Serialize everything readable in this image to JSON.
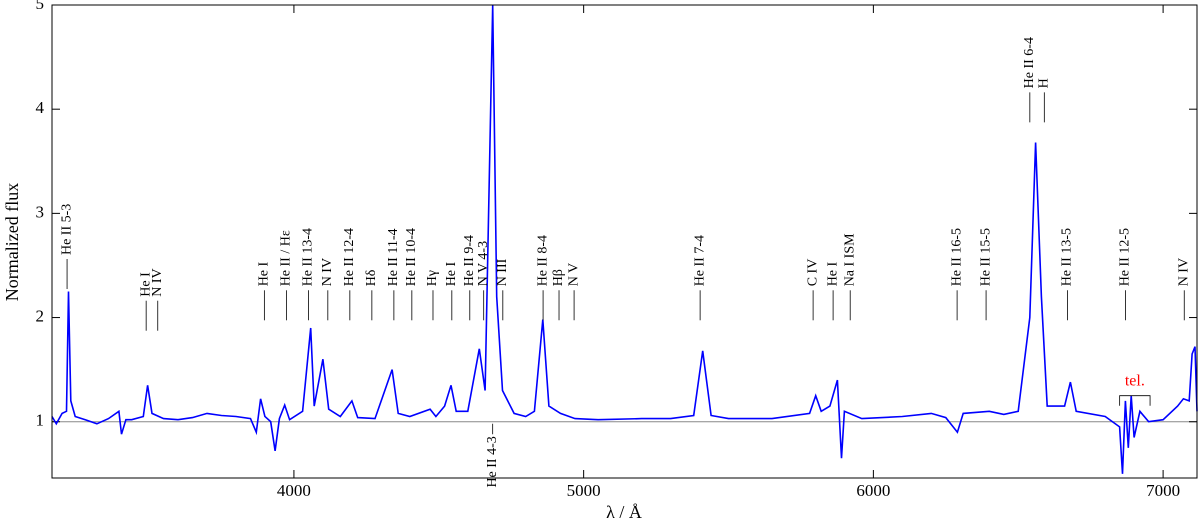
{
  "chart_data": {
    "type": "line",
    "xlabel": "λ / Å",
    "ylabel": "Normalized flux",
    "xlim": [
      3165,
      7117
    ],
    "ylim": [
      0.46,
      5.0
    ],
    "xticks": [
      4000,
      5000,
      6000,
      7000
    ],
    "yticks": [
      1,
      2,
      3,
      4,
      5
    ],
    "hline": 1,
    "hline_color": "#888888",
    "x": [
      3165,
      3180,
      3200,
      3215,
      3222,
      3230,
      3245,
      3280,
      3320,
      3360,
      3396,
      3405,
      3420,
      3440,
      3480,
      3495,
      3510,
      3550,
      3600,
      3650,
      3700,
      3750,
      3800,
      3850,
      3870,
      3885,
      3900,
      3920,
      3935,
      3950,
      3968,
      3985,
      4030,
      4058,
      4070,
      4100,
      4120,
      4160,
      4200,
      4220,
      4280,
      4339,
      4360,
      4400,
      4470,
      4490,
      4520,
      4542,
      4560,
      4600,
      4640,
      4660,
      4686,
      4700,
      4720,
      4760,
      4800,
      4830,
      4859,
      4880,
      4920,
      4970,
      5050,
      5200,
      5300,
      5380,
      5411,
      5440,
      5500,
      5650,
      5780,
      5801,
      5820,
      5850,
      5876,
      5890,
      5900,
      5960,
      6100,
      6200,
      6250,
      6290,
      6310,
      6400,
      6450,
      6500,
      6540,
      6560,
      6580,
      6600,
      6660,
      6680,
      6700,
      6800,
      6850,
      6860,
      6870,
      6880,
      6890,
      6900,
      6920,
      6950,
      7000,
      7050,
      7070,
      7090,
      7100,
      7110,
      7117
    ],
    "series": [
      {
        "name": "spectrum",
        "color": "#0000ff",
        "values": [
          1.05,
          0.98,
          1.08,
          1.1,
          2.25,
          1.2,
          1.05,
          1.02,
          0.98,
          1.03,
          1.1,
          0.88,
          1.02,
          1.02,
          1.05,
          1.35,
          1.08,
          1.03,
          1.02,
          1.04,
          1.08,
          1.06,
          1.05,
          1.03,
          0.9,
          1.22,
          1.05,
          1.0,
          0.72,
          1.03,
          1.16,
          1.02,
          1.1,
          1.9,
          1.15,
          1.6,
          1.12,
          1.05,
          1.2,
          1.04,
          1.03,
          1.5,
          1.08,
          1.05,
          1.12,
          1.05,
          1.15,
          1.35,
          1.1,
          1.1,
          1.7,
          1.3,
          5.0,
          2.2,
          1.3,
          1.08,
          1.05,
          1.1,
          1.98,
          1.15,
          1.08,
          1.03,
          1.02,
          1.03,
          1.03,
          1.06,
          1.68,
          1.06,
          1.03,
          1.03,
          1.08,
          1.25,
          1.1,
          1.15,
          1.4,
          0.65,
          1.1,
          1.03,
          1.05,
          1.08,
          1.04,
          0.9,
          1.08,
          1.1,
          1.07,
          1.1,
          2.0,
          3.68,
          2.2,
          1.15,
          1.15,
          1.38,
          1.1,
          1.05,
          0.95,
          0.5,
          1.2,
          0.75,
          1.25,
          0.85,
          1.1,
          1.0,
          1.02,
          1.15,
          1.22,
          1.2,
          1.65,
          1.72,
          1.1
        ]
      }
    ],
    "annotations": [
      {
        "text": "He II 5-3",
        "x": 3217,
        "y": 2.6
      },
      {
        "text": "He I",
        "x": 3490,
        "y": 2.2
      },
      {
        "text": "N IV",
        "x": 3530,
        "y": 2.2
      },
      {
        "text": "He I",
        "x": 3898,
        "y": 2.3
      },
      {
        "text": "He II / Hε",
        "x": 3974,
        "y": 2.3
      },
      {
        "text": "He II 13-4",
        "x": 4050,
        "y": 2.3
      },
      {
        "text": "N IV",
        "x": 4117,
        "y": 2.3
      },
      {
        "text": "He II 12-4",
        "x": 4193,
        "y": 2.3
      },
      {
        "text": "Hδ",
        "x": 4269,
        "y": 2.3
      },
      {
        "text": "He II 11-4",
        "x": 4345,
        "y": 2.3
      },
      {
        "text": "He II 10-4",
        "x": 4407,
        "y": 2.3
      },
      {
        "text": "Hγ",
        "x": 4480,
        "y": 2.3
      },
      {
        "text": "He I",
        "x": 4545,
        "y": 2.3
      },
      {
        "text": "He II 9-4",
        "x": 4607,
        "y": 2.3
      },
      {
        "text": "N V 4-3",
        "x": 4655,
        "y": 2.3
      },
      {
        "text": "N III",
        "x": 4721,
        "y": 2.3
      },
      {
        "text": "He II 4-3",
        "x": 4686,
        "y": 0.88
      },
      {
        "text": "He II 8-4",
        "x": 4860,
        "y": 2.3
      },
      {
        "text": "Hβ",
        "x": 4915,
        "y": 2.3
      },
      {
        "text": "N V",
        "x": 4967,
        "y": 2.3
      },
      {
        "text": "He II 7-4",
        "x": 5402,
        "y": 2.3
      },
      {
        "text": "C IV",
        "x": 5792,
        "y": 2.3
      },
      {
        "text": "He I",
        "x": 5861,
        "y": 2.3
      },
      {
        "text": "Na I ISM",
        "x": 5920,
        "y": 2.3
      },
      {
        "text": "He II 16-5",
        "x": 6289,
        "y": 2.3
      },
      {
        "text": "He II 15-5",
        "x": 6389,
        "y": 2.3
      },
      {
        "text": "He II 6-4",
        "x": 6540,
        "y": 4.2
      },
      {
        "text": "H",
        "x": 6590,
        "y": 4.2
      },
      {
        "text": "He II 13-5",
        "x": 6670,
        "y": 2.3
      },
      {
        "text": "He II 12-5",
        "x": 6870,
        "y": 2.3
      },
      {
        "text": "N IV",
        "x": 7073,
        "y": 2.3
      }
    ],
    "telluric": {
      "text": "tel.",
      "x": [
        6850,
        6955
      ],
      "y": 1.25,
      "color": "#ff0000"
    }
  }
}
